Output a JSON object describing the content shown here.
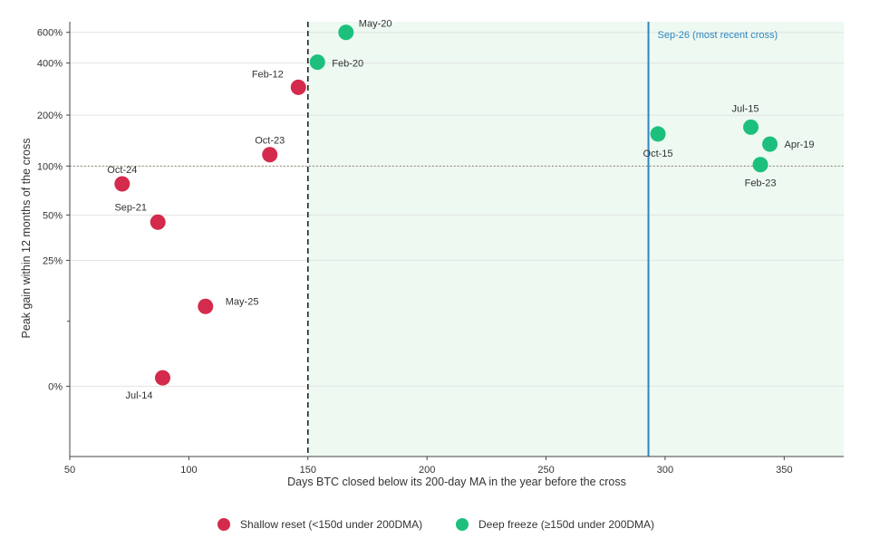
{
  "chart_data": {
    "type": "scatter",
    "xlabel": "Days BTC closed below its 200-day MA in the year before the cross",
    "ylabel": "Peak gain within 12 months of the cross",
    "xlim": [
      50,
      375
    ],
    "x_ticks": [
      50,
      100,
      150,
      200,
      250,
      300,
      350
    ],
    "y_scale": "symlog",
    "ylim": [
      -0.09,
      6.9
    ],
    "y_ticks": [
      0,
      0.25,
      0.5,
      1,
      2,
      4,
      6
    ],
    "y_tick_labels": [
      "0%",
      "25%",
      "50%",
      "100%",
      "200%",
      "400%",
      "600%"
    ],
    "grid": "horizontal",
    "reference_lines": [
      {
        "axis": "y",
        "value": 1,
        "style": "dotted"
      },
      {
        "axis": "x",
        "value": 150,
        "style": "dashed"
      },
      {
        "axis": "x",
        "value": 293,
        "style": "solid",
        "label": "Sep-26 (most recent cross)"
      }
    ],
    "shaded_region": {
      "x_from": 150,
      "x_to": 375
    },
    "legend_position": "bottom-center",
    "series": [
      {
        "name": "Shallow reset (<150d under 200DMA)",
        "color": "#d42a4c",
        "points": [
          {
            "label": "Oct-24",
            "x": 72,
            "y": 0.78
          },
          {
            "label": "Sep-21",
            "x": 87,
            "y": 0.45
          },
          {
            "label": "Jul-14",
            "x": 89,
            "y": 0.007
          },
          {
            "label": "May-25",
            "x": 107,
            "y": 0.11
          },
          {
            "label": "Oct-23",
            "x": 134,
            "y": 1.17
          },
          {
            "label": "Feb-12",
            "x": 146,
            "y": 2.9
          }
        ]
      },
      {
        "name": "Deep freeze (≥150d under 200DMA)",
        "color": "#1cc07c",
        "points": [
          {
            "label": "Feb-20",
            "x": 154,
            "y": 4.05
          },
          {
            "label": "May-20",
            "x": 166,
            "y": 6.0
          },
          {
            "label": "Oct-15",
            "x": 297,
            "y": 1.55
          },
          {
            "label": "Jul-15",
            "x": 336,
            "y": 1.7
          },
          {
            "label": "Feb-23",
            "x": 340,
            "y": 1.02
          },
          {
            "label": "Apr-19",
            "x": 344,
            "y": 1.35
          }
        ]
      }
    ]
  }
}
